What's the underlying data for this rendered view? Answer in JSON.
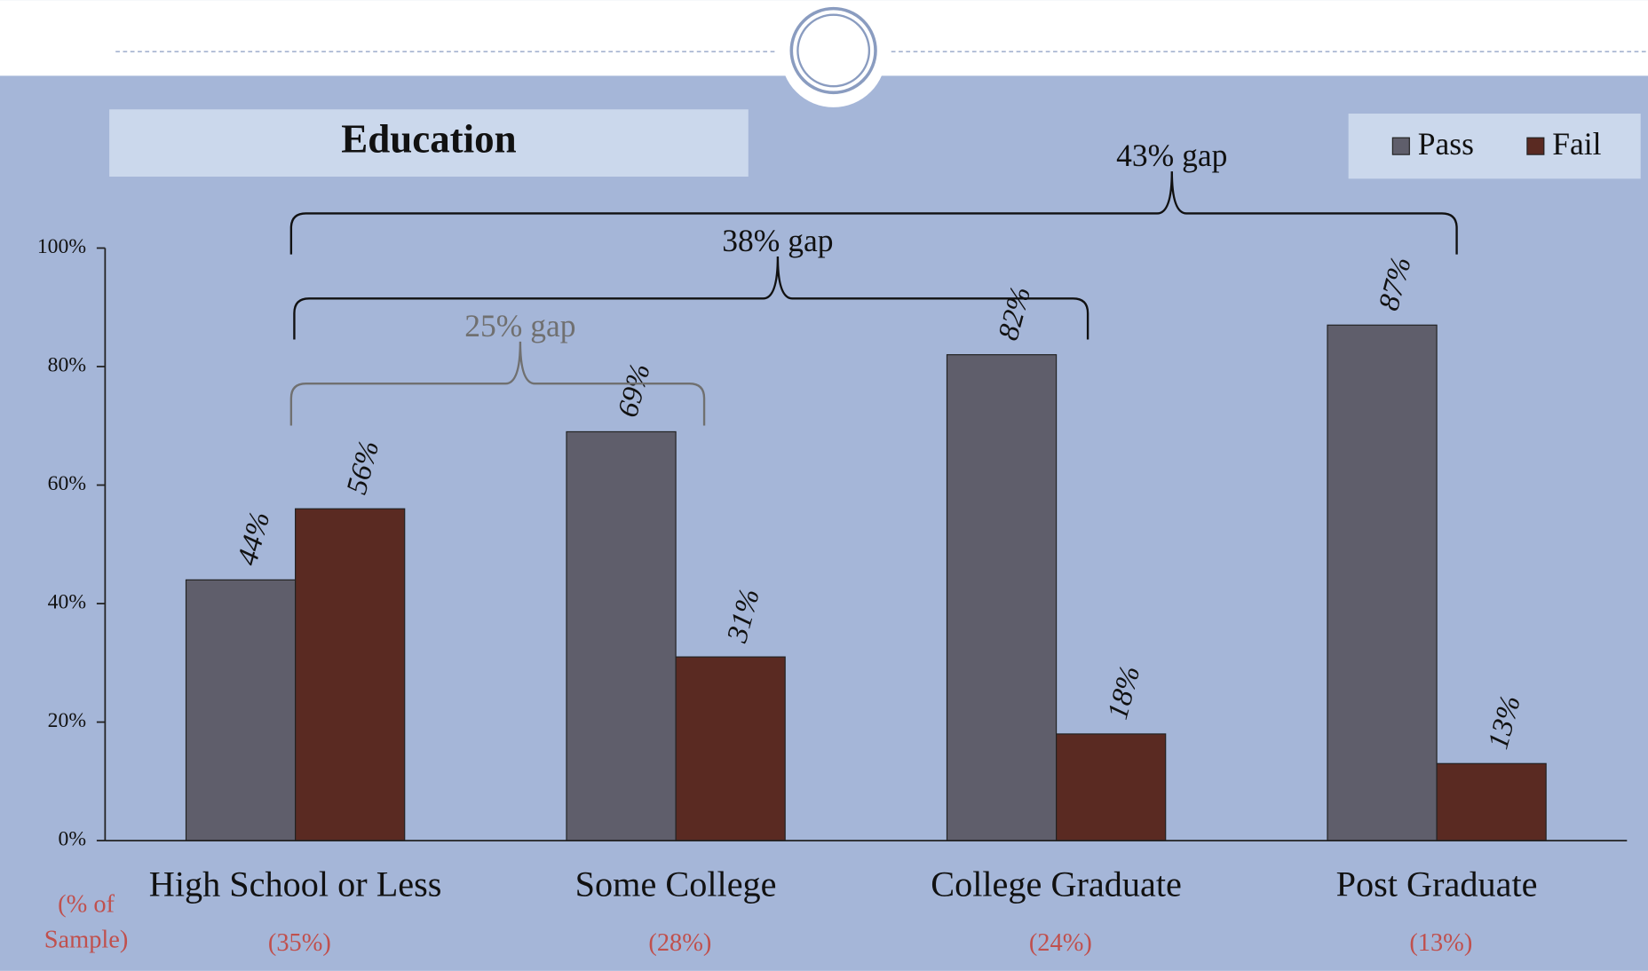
{
  "chart_data": {
    "type": "bar",
    "title": "Education",
    "categories": [
      "High School or Less",
      "Some College",
      "College Graduate",
      "Post Graduate"
    ],
    "sample_label": "(% of Sample)",
    "sample_shares": [
      "(35%)",
      "(28%)",
      "(24%)",
      "(13%)"
    ],
    "series": [
      {
        "name": "Pass",
        "color": "#5f5e6b",
        "values": [
          44,
          69,
          82,
          87
        ],
        "value_labels": [
          "44%",
          "69%",
          "82%",
          "87%"
        ]
      },
      {
        "name": "Fail",
        "color": "#5a2a22",
        "values": [
          56,
          31,
          18,
          13
        ],
        "value_labels": [
          "56%",
          "31%",
          "18%",
          "13%"
        ]
      }
    ],
    "ylim": [
      0,
      100
    ],
    "yticks": [
      {
        "value": 0,
        "label": "0%"
      },
      {
        "value": 20,
        "label": "20%"
      },
      {
        "value": 40,
        "label": "40%"
      },
      {
        "value": 60,
        "label": "60%"
      },
      {
        "value": 80,
        "label": "80%"
      },
      {
        "value": 100,
        "label": "100%"
      }
    ],
    "legend": "top-right",
    "annotations": [
      "25% gap",
      "38% gap",
      "43% gap"
    ]
  }
}
